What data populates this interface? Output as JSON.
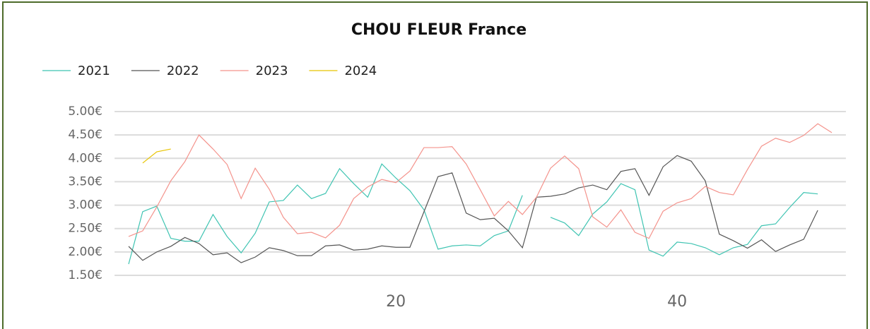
{
  "chart_data": {
    "type": "line",
    "title": "CHOU FLEUR France",
    "x": [
      1,
      2,
      3,
      4,
      5,
      6,
      7,
      8,
      9,
      10,
      11,
      12,
      13,
      14,
      15,
      16,
      17,
      18,
      19,
      20,
      21,
      22,
      23,
      24,
      25,
      26,
      27,
      28,
      29,
      30,
      31,
      32,
      33,
      34,
      35,
      36,
      37,
      38,
      39,
      40,
      41,
      42,
      43,
      44,
      45,
      46,
      47,
      48,
      49,
      50,
      51
    ],
    "series": [
      {
        "name": "2021",
        "color": "#3fc4b2",
        "values": [
          1.74,
          2.86,
          2.98,
          2.29,
          2.23,
          2.23,
          2.8,
          2.33,
          1.98,
          2.4,
          3.07,
          3.1,
          3.43,
          3.14,
          3.25,
          3.78,
          3.46,
          3.17,
          3.88,
          3.58,
          3.31,
          2.9,
          2.06,
          2.13,
          2.15,
          2.13,
          2.35,
          2.45,
          3.21,
          null,
          2.74,
          2.62,
          2.35,
          2.81,
          3.07,
          3.46,
          3.33,
          2.04,
          1.91,
          2.21,
          2.18,
          2.09,
          1.94,
          2.09,
          2.16,
          2.56,
          2.6,
          2.95,
          3.27,
          3.24,
          null
        ]
      },
      {
        "name": "2022",
        "color": "#555555",
        "values": [
          2.12,
          1.82,
          2.0,
          2.12,
          2.31,
          2.18,
          1.94,
          1.98,
          1.77,
          1.89,
          2.09,
          2.03,
          1.92,
          1.92,
          2.13,
          2.15,
          2.04,
          2.06,
          2.13,
          2.1,
          2.1,
          2.86,
          3.61,
          3.69,
          2.83,
          2.69,
          2.72,
          2.45,
          2.09,
          3.17,
          3.19,
          3.24,
          3.37,
          3.43,
          3.33,
          3.72,
          3.78,
          3.21,
          3.82,
          4.06,
          3.94,
          3.52,
          2.38,
          2.24,
          2.08,
          2.26,
          2.01,
          2.15,
          2.27,
          2.89,
          null
        ]
      },
      {
        "name": "2023",
        "color": "#f4938c",
        "values": [
          2.33,
          2.45,
          2.96,
          3.52,
          3.93,
          4.5,
          4.2,
          3.87,
          3.14,
          3.79,
          3.34,
          2.74,
          2.39,
          2.42,
          2.3,
          2.57,
          3.14,
          3.39,
          3.55,
          3.48,
          3.73,
          4.23,
          4.23,
          4.25,
          3.88,
          3.33,
          2.77,
          3.08,
          2.8,
          3.17,
          3.79,
          4.05,
          3.78,
          2.75,
          2.53,
          2.9,
          2.42,
          2.29,
          2.87,
          3.05,
          3.14,
          3.4,
          3.27,
          3.22,
          3.76,
          4.26,
          4.43,
          4.34,
          4.49,
          4.74,
          4.55
        ]
      },
      {
        "name": "2024",
        "color": "#e8c400",
        "values": [
          null,
          3.9,
          4.14,
          4.2,
          null,
          null,
          null,
          null,
          null,
          null,
          null,
          null,
          null,
          null,
          null,
          null,
          null,
          null,
          null,
          null,
          null,
          null,
          null,
          null,
          null,
          null,
          null,
          null,
          null,
          null,
          null,
          null,
          null,
          null,
          null,
          null,
          null,
          null,
          null,
          null,
          null,
          null,
          null,
          null,
          null,
          null,
          null,
          null,
          null,
          null,
          null
        ]
      }
    ],
    "xlim": [
      0,
      52
    ],
    "xticks": [
      20,
      40
    ],
    "ylim": [
      1.5,
      5.0
    ],
    "yticks": [
      {
        "value": 1.5,
        "label": "1.50€"
      },
      {
        "value": 2.0,
        "label": "2.00€"
      },
      {
        "value": 2.5,
        "label": "2.50€"
      },
      {
        "value": 3.0,
        "label": "3.00€"
      },
      {
        "value": 3.5,
        "label": "3.50€"
      },
      {
        "value": 4.0,
        "label": "4.00€"
      },
      {
        "value": 4.5,
        "label": "4.50€"
      },
      {
        "value": 5.0,
        "label": "5.00€"
      }
    ],
    "grid": true,
    "legend": "top-left"
  }
}
